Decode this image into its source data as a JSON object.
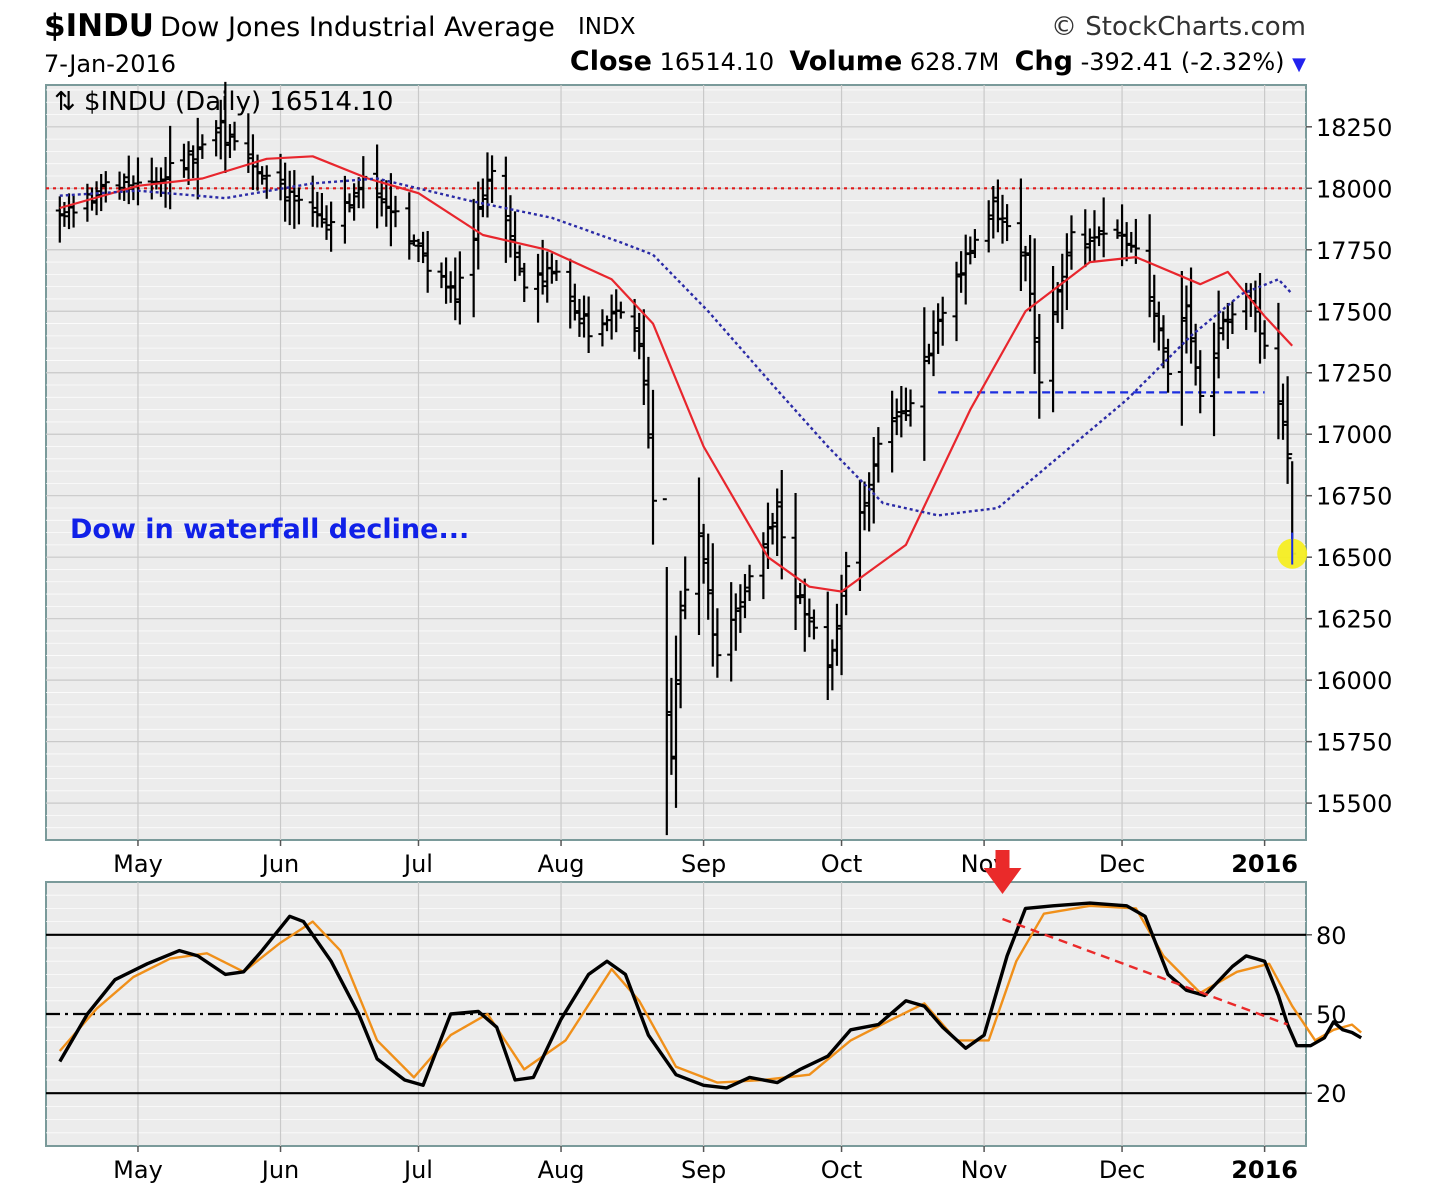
{
  "header": {
    "symbol": "$INDU",
    "name": "Dow Jones Industrial Average",
    "exchange": "INDX",
    "brand": "© StockCharts.com",
    "date": "7-Jan-2016",
    "close_label": "Close",
    "close_value": "16514.10",
    "volume_label": "Volume",
    "volume_value": "628.7M",
    "chg_label": "Chg",
    "chg_value": "-392.41 (-2.32%)",
    "chg_arrow": "▼"
  },
  "colors": {
    "background": "#ececec",
    "price_bars": "#000000",
    "ma_fast": "#e8262d",
    "ma_slow": "#2a2aa6",
    "resistance": "#e01b1b",
    "support": "#1c2fe0",
    "annotation": "#1020e8",
    "highlight": "#f5ee22",
    "stoch_fast": "#000000",
    "stoch_slow": "#f0901a",
    "trend": "#ea2a2a"
  },
  "chart_data": [
    {
      "type": "ohlc",
      "title": "$INDU (Daily) 16514.10",
      "annotation": "Dow in waterfall decline...",
      "x_ticks": [
        "May",
        "Jun",
        "Jul",
        "Aug",
        "Sep",
        "Oct",
        "Nov",
        "Dec",
        "2016"
      ],
      "ylim": [
        15350,
        18420
      ],
      "y_ticks": [
        15500,
        15750,
        16000,
        16250,
        16500,
        16750,
        17000,
        17250,
        17500,
        17750,
        18000,
        18250
      ],
      "grid": true,
      "last_close_marker": 16514.1,
      "horizontal_lines": [
        {
          "style": "dotted",
          "color": "red",
          "value": 18000
        },
        {
          "style": "dashed",
          "color": "blue",
          "value": 17170,
          "from": "Oct 22",
          "to": "2016"
        }
      ],
      "close_path": [
        [
          "Apr 14",
          17870
        ],
        [
          "Apr 23",
          18010
        ],
        [
          "May 1",
          18020
        ],
        [
          "May 10",
          18090
        ],
        [
          "May 19",
          18240
        ],
        [
          "May 27",
          18060
        ],
        [
          "Jun 5",
          17960
        ],
        [
          "Jun 12",
          17830
        ],
        [
          "Jun 19",
          18030
        ],
        [
          "Jun 26",
          17900
        ],
        [
          "Jul 2",
          17710
        ],
        [
          "Jul 9",
          17560
        ],
        [
          "Jul 17",
          18080
        ],
        [
          "Jul 24",
          17610
        ],
        [
          "Jul 31",
          17660
        ],
        [
          "Aug 7",
          17420
        ],
        [
          "Aug 14",
          17480
        ],
        [
          "Aug 18",
          17380
        ],
        [
          "Aug 20",
          16990
        ],
        [
          "Aug 24",
          15870
        ],
        [
          "Aug 25",
          15660
        ],
        [
          "Aug 27",
          16280
        ],
        [
          "Aug 31",
          16580
        ],
        [
          "Sep 4",
          16100
        ],
        [
          "Sep 11",
          16410
        ],
        [
          "Sep 17",
          16690
        ],
        [
          "Sep 21",
          16350
        ],
        [
          "Sep 28",
          16050
        ],
        [
          "Oct 2",
          16430
        ],
        [
          "Oct 9",
          16960
        ],
        [
          "Oct 16",
          17140
        ],
        [
          "Oct 23",
          17520
        ],
        [
          "Oct 30",
          17780
        ],
        [
          "Nov 3",
          17920
        ],
        [
          "Nov 10",
          17710
        ],
        [
          "Nov 13",
          17240
        ],
        [
          "Nov 20",
          17800
        ],
        [
          "Nov 27",
          17800
        ],
        [
          "Dec 4",
          17790
        ],
        [
          "Dec 11",
          17280
        ],
        [
          "Dec 15",
          17520
        ],
        [
          "Dec 18",
          17140
        ],
        [
          "Dec 22",
          17430
        ],
        [
          "Dec 28",
          17560
        ],
        [
          "Dec 31",
          17430
        ],
        [
          "Jan 4",
          17150
        ],
        [
          "Jan 6",
          16910
        ],
        [
          "Jan 7",
          16514
        ]
      ],
      "series": [
        {
          "name": "",
          "style": "solid",
          "color": "red",
          "values": [
            [
              "Apr 14",
              17920
            ],
            [
              "May 1",
              18010
            ],
            [
              "May 15",
              18040
            ],
            [
              "May 29",
              18120
            ],
            [
              "Jun 8",
              18130
            ],
            [
              "Jun 20",
              18040
            ],
            [
              "Jul 1",
              17980
            ],
            [
              "Jul 15",
              17810
            ],
            [
              "Jul 29",
              17750
            ],
            [
              "Aug 12",
              17630
            ],
            [
              "Aug 21",
              17450
            ],
            [
              "Sep 1",
              16950
            ],
            [
              "Sep 15",
              16500
            ],
            [
              "Sep 24",
              16380
            ],
            [
              "Oct 1",
              16360
            ],
            [
              "Oct 15",
              16550
            ],
            [
              "Oct 29",
              17100
            ],
            [
              "Nov 10",
              17500
            ],
            [
              "Nov 24",
              17700
            ],
            [
              "Dec 4",
              17720
            ],
            [
              "Dec 18",
              17610
            ],
            [
              "Dec 24",
              17660
            ],
            [
              "Jan 1",
              17480
            ],
            [
              "Jan 7",
              17360
            ]
          ]
        },
        {
          "name": "",
          "style": "dotted",
          "color": "blue",
          "values": [
            [
              "Apr 14",
              17970
            ],
            [
              "May 1",
              17990
            ],
            [
              "May 20",
              17960
            ],
            [
              "Jun 8",
              18020
            ],
            [
              "Jun 22",
              18040
            ],
            [
              "Jul 12",
              17950
            ],
            [
              "Jul 30",
              17880
            ],
            [
              "Aug 14",
              17780
            ],
            [
              "Aug 21",
              17730
            ],
            [
              "Sep 2",
              17500
            ],
            [
              "Sep 17",
              17180
            ],
            [
              "Sep 28",
              16950
            ],
            [
              "Oct 10",
              16720
            ],
            [
              "Oct 22",
              16670
            ],
            [
              "Nov 4",
              16700
            ],
            [
              "Nov 18",
              16920
            ],
            [
              "Dec 2",
              17140
            ],
            [
              "Dec 16",
              17400
            ],
            [
              "Dec 27",
              17570
            ],
            [
              "Jan 4",
              17630
            ],
            [
              "Jan 7",
              17570
            ]
          ]
        }
      ]
    },
    {
      "type": "line",
      "x_ticks": [
        "May",
        "Jun",
        "Jul",
        "Aug",
        "Sep",
        "Oct",
        "Nov",
        "Dec",
        "2016"
      ],
      "ylim": [
        0,
        100
      ],
      "y_ticks": [
        20,
        50,
        80
      ],
      "grid": true,
      "reference_lines": [
        {
          "value": 80,
          "style": "solid"
        },
        {
          "value": 50,
          "style": "dash-dot"
        },
        {
          "value": 20,
          "style": "solid"
        }
      ],
      "trendline": {
        "style": "dashed",
        "color": "red",
        "from": [
          "Nov 5",
          86
        ],
        "to": [
          "Jan 6",
          46
        ]
      },
      "signal_arrow": {
        "x": "Nov 5",
        "color": "red",
        "direction": "down"
      },
      "series": [
        {
          "name": "",
          "color": "black",
          "values": [
            [
              "Apr 14",
              32
            ],
            [
              "Apr 20",
              50
            ],
            [
              "Apr 26",
              63
            ],
            [
              "May 3",
              69
            ],
            [
              "May 10",
              74
            ],
            [
              "May 14",
              72
            ],
            [
              "May 20",
              65
            ],
            [
              "May 24",
              66
            ],
            [
              "May 28",
              74
            ],
            [
              "Jun 3",
              87
            ],
            [
              "Jun 6",
              85
            ],
            [
              "Jun 12",
              70
            ],
            [
              "Jun 18",
              50
            ],
            [
              "Jun 22",
              33
            ],
            [
              "Jun 28",
              25
            ],
            [
              "Jul 2",
              23
            ],
            [
              "Jul 8",
              50
            ],
            [
              "Jul 14",
              51
            ],
            [
              "Jul 18",
              45
            ],
            [
              "Jul 22",
              25
            ],
            [
              "Jul 26",
              26
            ],
            [
              "Aug 1",
              48
            ],
            [
              "Aug 7",
              65
            ],
            [
              "Aug 11",
              70
            ],
            [
              "Aug 15",
              65
            ],
            [
              "Aug 20",
              42
            ],
            [
              "Aug 26",
              27
            ],
            [
              "Sep 1",
              23
            ],
            [
              "Sep 6",
              22
            ],
            [
              "Sep 11",
              26
            ],
            [
              "Sep 17",
              24
            ],
            [
              "Sep 22",
              29
            ],
            [
              "Sep 28",
              34
            ],
            [
              "Oct 3",
              44
            ],
            [
              "Oct 9",
              46
            ],
            [
              "Oct 15",
              55
            ],
            [
              "Oct 19",
              53
            ],
            [
              "Oct 23",
              45
            ],
            [
              "Oct 28",
              37
            ],
            [
              "Nov 1",
              42
            ],
            [
              "Nov 6",
              72
            ],
            [
              "Nov 10",
              90
            ],
            [
              "Nov 16",
              91
            ],
            [
              "Nov 24",
              92
            ],
            [
              "Dec 2",
              91
            ],
            [
              "Dec 6",
              87
            ],
            [
              "Dec 11",
              65
            ],
            [
              "Dec 15",
              59
            ],
            [
              "Dec 19",
              57
            ],
            [
              "Dec 25",
              68
            ],
            [
              "Dec 28",
              72
            ],
            [
              "Jan 1",
              70
            ],
            [
              "Jan 4",
              57
            ],
            [
              "Jan 6",
              46
            ],
            [
              "Jan 8",
              38
            ],
            [
              "Jan 11",
              38
            ],
            [
              "Jan 14",
              41
            ],
            [
              "Jan 16",
              47
            ],
            [
              "Jan 18",
              44
            ],
            [
              "Jan 20",
              43
            ],
            [
              "Jan 22",
              41
            ]
          ]
        },
        {
          "name": "",
          "color": "orange",
          "values": [
            [
              "Apr 14",
              36
            ],
            [
              "Apr 22",
              52
            ],
            [
              "Apr 30",
              64
            ],
            [
              "May 8",
              71
            ],
            [
              "May 16",
              73
            ],
            [
              "May 24",
              66
            ],
            [
              "Jun 1",
              77
            ],
            [
              "Jun 8",
              85
            ],
            [
              "Jun 14",
              74
            ],
            [
              "Jun 22",
              40
            ],
            [
              "Jun 30",
              26
            ],
            [
              "Jul 8",
              42
            ],
            [
              "Jul 16",
              50
            ],
            [
              "Jul 24",
              29
            ],
            [
              "Aug 2",
              40
            ],
            [
              "Aug 12",
              67
            ],
            [
              "Aug 18",
              55
            ],
            [
              "Aug 26",
              30
            ],
            [
              "Sep 4",
              24
            ],
            [
              "Sep 14",
              25
            ],
            [
              "Sep 24",
              27
            ],
            [
              "Oct 3",
              40
            ],
            [
              "Oct 12",
              48
            ],
            [
              "Oct 19",
              54
            ],
            [
              "Oct 26",
              40
            ],
            [
              "Nov 2",
              40
            ],
            [
              "Nov 8",
              70
            ],
            [
              "Nov 14",
              88
            ],
            [
              "Nov 24",
              91
            ],
            [
              "Dec 4",
              90
            ],
            [
              "Dec 10",
              72
            ],
            [
              "Dec 18",
              58
            ],
            [
              "Dec 26",
              66
            ],
            [
              "Jan 2",
              69
            ],
            [
              "Jan 7",
              53
            ],
            [
              "Jan 12",
              40
            ],
            [
              "Jan 16",
              44
            ],
            [
              "Jan 20",
              46
            ],
            [
              "Jan 22",
              43
            ]
          ]
        }
      ]
    }
  ]
}
